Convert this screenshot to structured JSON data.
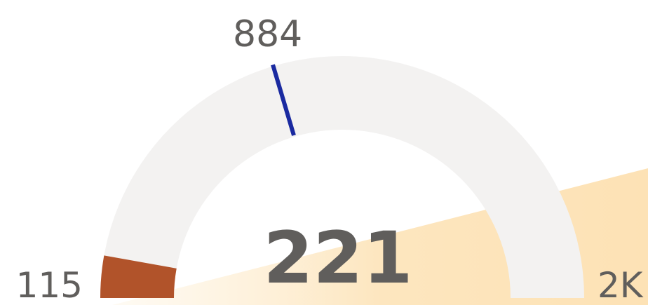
{
  "chart_data": {
    "type": "gauge",
    "value": 221,
    "target": 884,
    "min": 115,
    "max": {
      "value": 2000,
      "label": "2K"
    },
    "color": "#b1532a",
    "track_color": "#f3f2f1",
    "target_color": "#1a2aa0"
  }
}
